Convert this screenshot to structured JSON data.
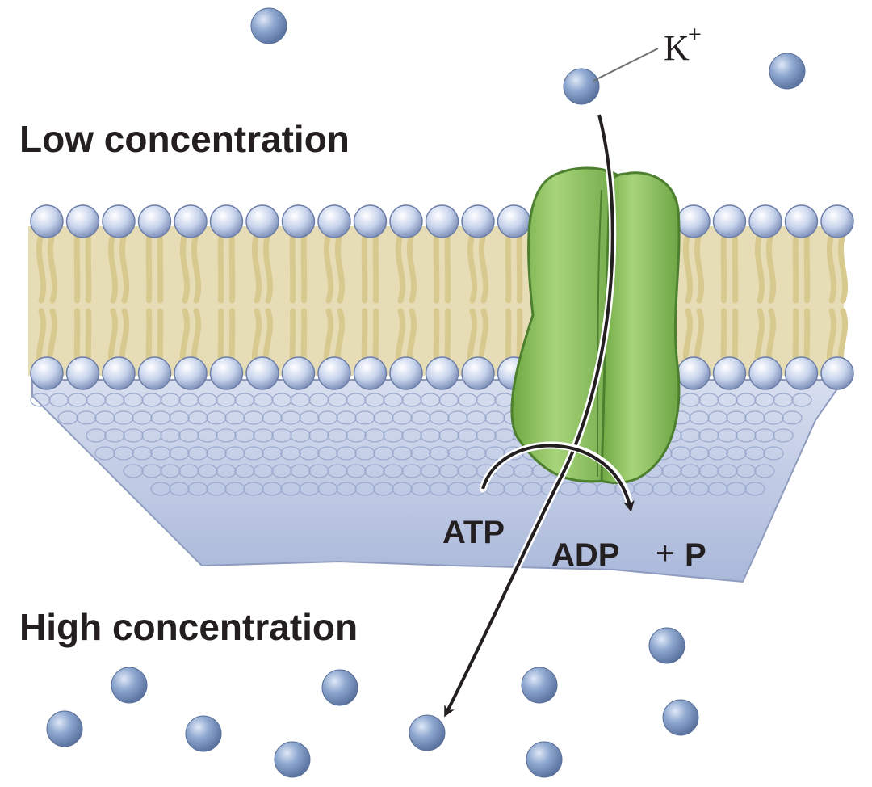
{
  "labels": {
    "low": "Low concentration",
    "high": "High concentration",
    "ion": "K",
    "ion_charge": "+",
    "atp": "ATP",
    "adp": "ADP",
    "plus": "+",
    "phosphate": "P"
  },
  "colors": {
    "ion": "#7d98c4",
    "head": "#aebfdf",
    "tail": "#efe2b4",
    "membrane_core": "#e6dcb6",
    "cytoplasm": "#c9d3ea",
    "protein": "#8fc45f",
    "protein_dark": "#5f9a3a",
    "arrow": "#231f20"
  }
}
